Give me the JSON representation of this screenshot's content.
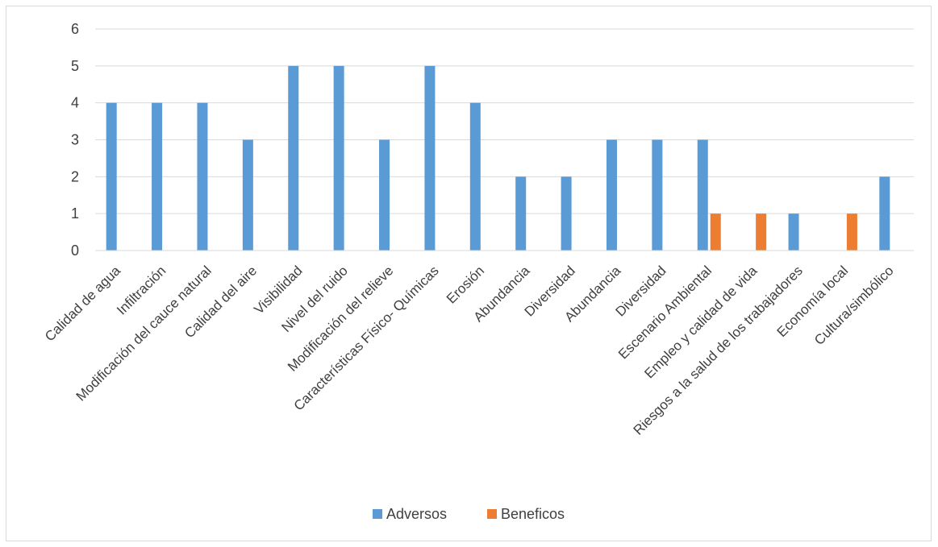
{
  "chart_data": {
    "type": "bar",
    "categories": [
      "Calidad de agua",
      "Infiltración",
      "Modificación del cauce natural",
      "Calidad del aire",
      "Visibilidad",
      "Nivel del ruido",
      "Modificación del relieve",
      "Características Físico- Químicas",
      "Erosión",
      "Abundancia",
      "Diversidad",
      "Abundancia",
      "Diversidad",
      "Escenario Ambiental",
      "Empleo y calidad de vida",
      "Riesgos a la salud de los trabajadores",
      "Economía local",
      "Cultura/simbólico"
    ],
    "series": [
      {
        "name": "Adversos",
        "color": "#5b9bd5",
        "values": [
          4,
          4,
          4,
          3,
          5,
          5,
          3,
          5,
          4,
          2,
          2,
          3,
          3,
          3,
          null,
          1,
          null,
          2
        ]
      },
      {
        "name": "Beneficos",
        "color": "#ed7d31",
        "values": [
          null,
          null,
          null,
          null,
          null,
          null,
          null,
          null,
          null,
          null,
          null,
          null,
          null,
          1,
          1,
          null,
          1,
          null
        ]
      }
    ],
    "yticks": [
      "0",
      "1",
      "2",
      "3",
      "4",
      "5",
      "6"
    ],
    "ylim": [
      0,
      6
    ],
    "grid": true,
    "legend_position": "bottom"
  }
}
